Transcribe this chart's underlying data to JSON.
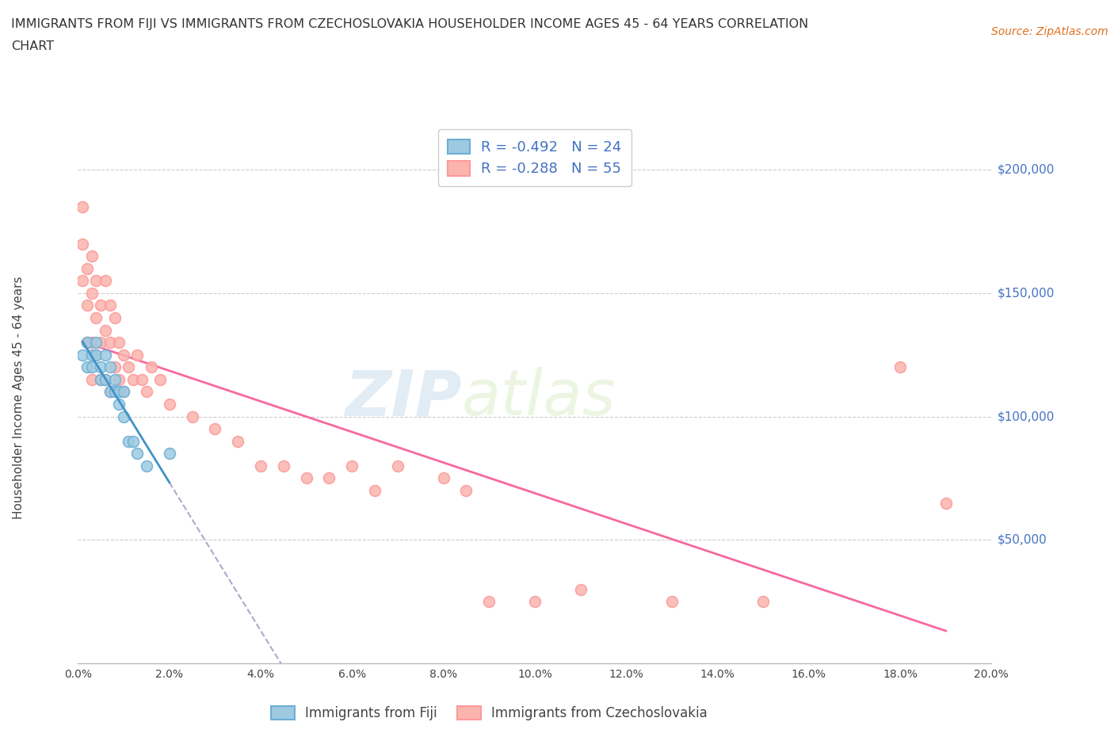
{
  "title_line1": "IMMIGRANTS FROM FIJI VS IMMIGRANTS FROM CZECHOSLOVAKIA HOUSEHOLDER INCOME AGES 45 - 64 YEARS CORRELATION",
  "title_line2": "CHART",
  "source_text": "Source: ZipAtlas.com",
  "ylabel": "Householder Income Ages 45 - 64 years",
  "ylabel_ticks": [
    "$200,000",
    "$150,000",
    "$100,000",
    "$50,000"
  ],
  "ylabel_values": [
    200000,
    150000,
    100000,
    50000
  ],
  "xlim": [
    0.0,
    0.2
  ],
  "ylim": [
    0,
    215000
  ],
  "fiji_color": "#6baed6",
  "fiji_color_fill": "#9ecae1",
  "czech_color": "#fb9a99",
  "czech_color_fill": "#fbb4ae",
  "legend_label_fiji": "Immigrants from Fiji",
  "legend_label_czech": "Immigrants from Czechoslovakia",
  "watermark_zip": "ZIP",
  "watermark_atlas": "atlas",
  "fiji_trend_color": "#4292c6",
  "czech_trend_color": "#f768a1",
  "dashed_color": "#aaaacc",
  "fiji_scatter_x": [
    0.001,
    0.002,
    0.002,
    0.003,
    0.003,
    0.004,
    0.004,
    0.005,
    0.005,
    0.006,
    0.006,
    0.007,
    0.007,
    0.008,
    0.008,
    0.009,
    0.009,
    0.01,
    0.01,
    0.011,
    0.012,
    0.013,
    0.015,
    0.02
  ],
  "fiji_scatter_y": [
    125000,
    130000,
    120000,
    125000,
    120000,
    130000,
    125000,
    120000,
    115000,
    125000,
    115000,
    120000,
    110000,
    115000,
    110000,
    110000,
    105000,
    110000,
    100000,
    90000,
    90000,
    85000,
    80000,
    85000
  ],
  "czech_scatter_x": [
    0.001,
    0.001,
    0.001,
    0.002,
    0.002,
    0.002,
    0.003,
    0.003,
    0.003,
    0.003,
    0.004,
    0.004,
    0.004,
    0.005,
    0.005,
    0.005,
    0.006,
    0.006,
    0.006,
    0.007,
    0.007,
    0.007,
    0.008,
    0.008,
    0.009,
    0.009,
    0.01,
    0.01,
    0.011,
    0.012,
    0.013,
    0.014,
    0.015,
    0.016,
    0.018,
    0.02,
    0.025,
    0.03,
    0.035,
    0.04,
    0.045,
    0.05,
    0.055,
    0.06,
    0.065,
    0.07,
    0.08,
    0.085,
    0.09,
    0.1,
    0.11,
    0.13,
    0.15,
    0.18,
    0.19
  ],
  "czech_scatter_y": [
    185000,
    170000,
    155000,
    160000,
    145000,
    130000,
    165000,
    150000,
    130000,
    115000,
    155000,
    140000,
    125000,
    145000,
    130000,
    115000,
    155000,
    135000,
    115000,
    145000,
    130000,
    110000,
    140000,
    120000,
    130000,
    115000,
    125000,
    110000,
    120000,
    115000,
    125000,
    115000,
    110000,
    120000,
    115000,
    105000,
    100000,
    95000,
    90000,
    80000,
    80000,
    75000,
    75000,
    80000,
    70000,
    80000,
    75000,
    70000,
    25000,
    25000,
    30000,
    25000,
    25000,
    120000,
    65000
  ]
}
